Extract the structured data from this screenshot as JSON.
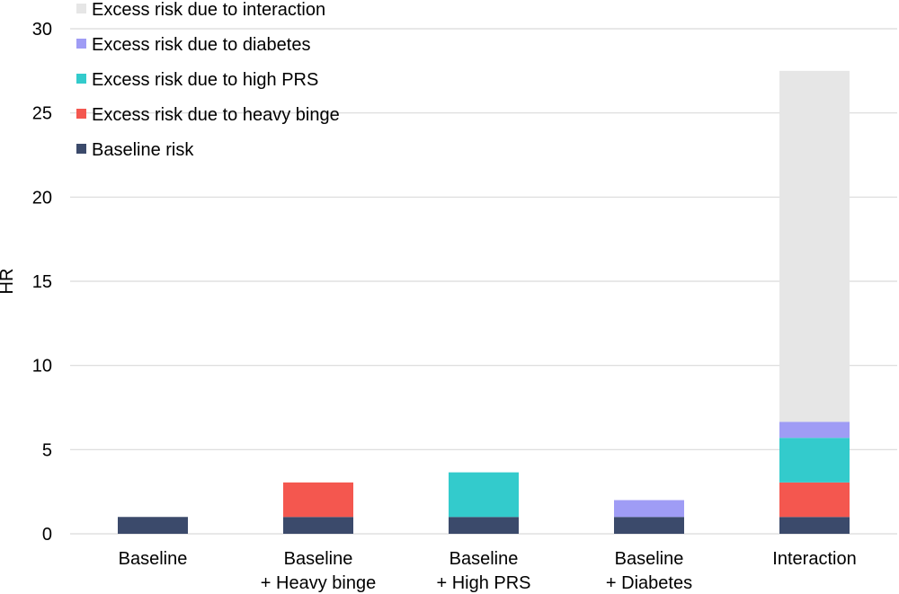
{
  "chart_data": {
    "type": "bar",
    "stacked": true,
    "categories": [
      [
        "Baseline"
      ],
      [
        "Baseline",
        "+ Heavy binge"
      ],
      [
        "Baseline",
        "+ High PRS"
      ],
      [
        "Baseline",
        "+ Diabetes"
      ],
      [
        "Interaction"
      ]
    ],
    "series": [
      {
        "name": "Baseline risk",
        "color": "#3b4a6b",
        "values": [
          1,
          1,
          1,
          1,
          1
        ]
      },
      {
        "name": "Excess risk due to heavy binge",
        "color": "#f4574f",
        "values": [
          0,
          2.05,
          0,
          0,
          2.05
        ]
      },
      {
        "name": "Excess risk due to high PRS",
        "color": "#33cbcc",
        "values": [
          0,
          0,
          2.65,
          0,
          2.65
        ]
      },
      {
        "name": "Excess risk due to diabetes",
        "color": "#9f9cf5",
        "values": [
          0,
          0,
          0,
          1.0,
          0.95
        ]
      },
      {
        "name": "Excess risk due to interaction",
        "color": "#e6e6e6",
        "values": [
          0,
          0,
          0,
          0,
          20.85
        ]
      }
    ],
    "ylabel": "HR",
    "xlabel": "",
    "ylim": [
      0,
      30
    ],
    "yticks": [
      0,
      5,
      10,
      15,
      20,
      25,
      30
    ],
    "grid": true,
    "legend_placement": "top-left",
    "legend_order": [
      "Excess risk due to interaction",
      "Excess risk due to diabetes",
      "Excess risk due to high PRS",
      "Excess risk due to heavy binge",
      "Baseline risk"
    ]
  }
}
